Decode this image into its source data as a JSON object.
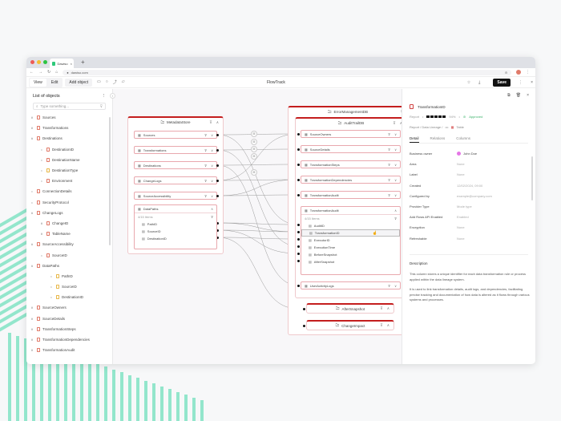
{
  "browser": {
    "tab_title": "Dawiso",
    "tab_close": "×",
    "new_tab": "+",
    "url": "dawiso.com",
    "colors": {
      "close": "#ee5b55",
      "minimize": "#f5bf30",
      "maximize": "#2dc443"
    }
  },
  "toolbar": {
    "view_label": "View",
    "edit_label": "Edit",
    "add_object_label": "Add object",
    "tool_icons": [
      "rectangle-icon",
      "circle-icon",
      "connector-icon",
      "comment-icon"
    ],
    "title": "FlowTrack",
    "save_label": "Save",
    "more": "⋮",
    "close": "×",
    "star": "☆",
    "download": "⤓"
  },
  "sidebar": {
    "title": "List of objects",
    "more": "⋮",
    "search_placeholder": "Type something...",
    "collapse": "‹",
    "items": [
      {
        "label": "Sources",
        "level": 0,
        "chev": "∨",
        "color": "red"
      },
      {
        "label": "Transformations",
        "level": 0,
        "chev": "∨",
        "color": "red"
      },
      {
        "label": "Destinations",
        "level": 0,
        "chev": "∧",
        "color": "red"
      },
      {
        "label": "DestinationID",
        "level": 1,
        "chev": "•",
        "color": "red"
      },
      {
        "label": "DestinationName",
        "level": 1,
        "chev": "•",
        "color": "red"
      },
      {
        "label": "DestinationType",
        "level": 1,
        "chev": "•",
        "color": "yellow"
      },
      {
        "label": "Environment",
        "level": 1,
        "chev": "•",
        "color": "red"
      },
      {
        "label": "ConnectionDetails",
        "level": 0,
        "chev": "•",
        "color": "red"
      },
      {
        "label": "SecurityProtocol",
        "level": 0,
        "chev": "•",
        "color": "red"
      },
      {
        "label": "ChangeLogs",
        "level": 0,
        "chev": "∧",
        "color": "red"
      },
      {
        "label": "ChangeID",
        "level": 1,
        "chev": "∨",
        "color": "red"
      },
      {
        "label": "TableName",
        "level": 1,
        "chev": "∨",
        "color": "red"
      },
      {
        "label": "SourceAccessibility",
        "level": 0,
        "chev": "∧",
        "color": "red"
      },
      {
        "label": "SourceID",
        "level": 1,
        "chev": "•",
        "color": "red"
      },
      {
        "label": "DataPaths",
        "level": 0,
        "chev": "∧",
        "color": "red"
      },
      {
        "label": "PathID",
        "level": 2,
        "chev": "•",
        "color": "yellow"
      },
      {
        "label": "SourceID",
        "level": 2,
        "chev": "•",
        "color": "yellow"
      },
      {
        "label": "DestinationID",
        "level": 2,
        "chev": "•",
        "color": "yellow"
      },
      {
        "label": "SourceOwners",
        "level": 0,
        "chev": "∨",
        "color": "red"
      },
      {
        "label": "SourceDetails",
        "level": 0,
        "chev": "∨",
        "color": "red"
      },
      {
        "label": "TransformationSteps",
        "level": 0,
        "chev": "∨",
        "color": "red"
      },
      {
        "label": "TransformationDependencies",
        "level": 0,
        "chev": "∨",
        "color": "red"
      },
      {
        "label": "TransformationAudit",
        "level": 0,
        "chev": "∨",
        "color": "red"
      }
    ]
  },
  "canvas": {
    "metadata_store": {
      "title": "MetadataStore",
      "tables": [
        "Sources",
        "Transformations",
        "Destinations",
        "ChangeLogs",
        "SourceAccessibility"
      ],
      "expanded": {
        "title": "DataPaths",
        "count": "4/15 Items",
        "columns": [
          "PathID",
          "SourceID",
          "DestinationID"
        ]
      }
    },
    "error_db": {
      "title": "ErrorManagementDB",
      "audit_db": {
        "title": "AuditTrailDB",
        "tables": [
          "SourceOwners",
          "SourceDetails",
          "TransformationSteps",
          "TransformationDependencies",
          "TransformationAudit_collapsed"
        ],
        "table_labels": [
          "SourceOwners",
          "SourceDetails",
          "TransformationSteps",
          "TransformationDependencies",
          "TransformationAudit"
        ],
        "expanded": {
          "title": "TransformationAudit",
          "count": "4/15 Items",
          "columns": [
            "AuditID",
            "TransformationID",
            "ExecutorID",
            "ExecutionTime",
            "BeforeSnapshot",
            "AfterSnapshot"
          ],
          "selected_index": 1
        },
        "last_table": "UserActivityLogs"
      },
      "sub_groups": [
        "AfterSnapshot",
        "ChangeImpact"
      ]
    },
    "icons": {
      "filter": "⊽",
      "chev_down": "∨",
      "chev_up": "∧",
      "table": "▦",
      "column": "▤",
      "folder": "🗀"
    }
  },
  "panel": {
    "title": "TransformationID",
    "meta_type": "Report",
    "rating_pct": "94%",
    "status": "Approved",
    "breadcrumb": [
      "Report / Data Lineage /",
      "•••",
      "Table"
    ],
    "tabs": [
      "Detail",
      "Relations",
      "Columns"
    ],
    "active_tab": "Detail",
    "fields": [
      {
        "key": "Business owner",
        "value": "John Doe"
      },
      {
        "key": "Area",
        "value": "None"
      },
      {
        "key": "Label",
        "value": "None"
      },
      {
        "key": "Created",
        "value": "12/02/2024, 09:00"
      },
      {
        "key": "Configured by",
        "value": "example@company.com"
      },
      {
        "key": "Provider Type",
        "value": "Mode type"
      },
      {
        "key": "Add Rows API Enabled",
        "value": "Enabled"
      },
      {
        "key": "Encryption",
        "value": "None"
      },
      {
        "key": "Refreshable",
        "value": "None"
      }
    ],
    "description_title": "Description",
    "description": [
      "This column stores a unique identifier for each data transformation rule or process applied within the data lineage system.",
      "It is used to link transformation details, audit logs, and dependencies, facilitating precise tracking and documentation of how data is altered as it flows through various systems and processes."
    ]
  }
}
